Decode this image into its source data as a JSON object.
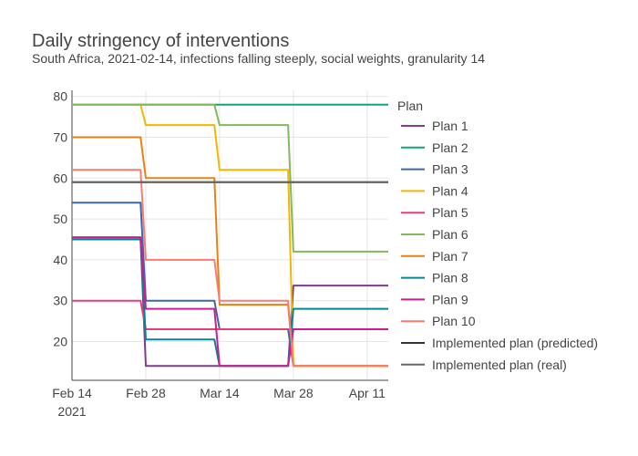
{
  "chart_data": {
    "type": "line",
    "title": "Daily stringency of interventions",
    "subtitle": "South Africa, 2021-02-14, infections falling steeply, social weights, granularity 14",
    "xlabel": "",
    "ylabel": "",
    "x_ticks": [
      {
        "date": "2021-02-14",
        "label": "Feb 14",
        "sublabel": "2021"
      },
      {
        "date": "2021-02-28",
        "label": "Feb 28",
        "sublabel": ""
      },
      {
        "date": "2021-03-14",
        "label": "Mar 14",
        "sublabel": ""
      },
      {
        "date": "2021-03-28",
        "label": "Mar 28",
        "sublabel": ""
      },
      {
        "date": "2021-04-11",
        "label": "Apr 11",
        "sublabel": ""
      }
    ],
    "xlim": [
      "2021-02-14",
      "2021-04-15"
    ],
    "y_ticks": [
      20,
      30,
      40,
      50,
      60,
      70,
      80
    ],
    "ylim": [
      10.5,
      81.5
    ],
    "grid": true,
    "legend": {
      "title": "Plan",
      "placement": "right"
    },
    "series": [
      {
        "name": "Plan 1",
        "color": "#7f3c8d",
        "points": [
          [
            "2021-02-14",
            45.5
          ],
          [
            "2021-02-27",
            45.5
          ],
          [
            "2021-02-28",
            14
          ],
          [
            "2021-03-13",
            14
          ],
          [
            "2021-03-14",
            14
          ],
          [
            "2021-03-27",
            14
          ],
          [
            "2021-03-28",
            33.7
          ],
          [
            "2021-04-15",
            33.7
          ]
        ]
      },
      {
        "name": "Plan 2",
        "color": "#11a579",
        "points": [
          [
            "2021-02-14",
            78
          ],
          [
            "2021-04-15",
            78
          ]
        ]
      },
      {
        "name": "Plan 3",
        "color": "#3969ac",
        "points": [
          [
            "2021-02-14",
            54
          ],
          [
            "2021-02-27",
            54
          ],
          [
            "2021-02-28",
            30
          ],
          [
            "2021-03-13",
            30
          ],
          [
            "2021-03-14",
            23
          ],
          [
            "2021-03-27",
            23
          ],
          [
            "2021-03-28",
            14
          ],
          [
            "2021-04-15",
            14
          ]
        ]
      },
      {
        "name": "Plan 4",
        "color": "#f2b701",
        "points": [
          [
            "2021-02-14",
            78
          ],
          [
            "2021-02-27",
            78
          ],
          [
            "2021-02-28",
            73
          ],
          [
            "2021-03-13",
            73
          ],
          [
            "2021-03-14",
            62
          ],
          [
            "2021-03-27",
            62
          ],
          [
            "2021-03-28",
            14
          ],
          [
            "2021-04-15",
            14
          ]
        ]
      },
      {
        "name": "Plan 5",
        "color": "#e73f74",
        "points": [
          [
            "2021-02-14",
            30
          ],
          [
            "2021-02-27",
            30
          ],
          [
            "2021-02-28",
            23
          ],
          [
            "2021-03-13",
            23
          ],
          [
            "2021-03-14",
            23
          ],
          [
            "2021-03-27",
            23
          ],
          [
            "2021-03-28",
            23
          ],
          [
            "2021-04-15",
            23
          ]
        ]
      },
      {
        "name": "Plan 6",
        "color": "#80ba5a",
        "points": [
          [
            "2021-02-14",
            78
          ],
          [
            "2021-02-27",
            78
          ],
          [
            "2021-02-28",
            78
          ],
          [
            "2021-03-13",
            78
          ],
          [
            "2021-03-14",
            73
          ],
          [
            "2021-03-27",
            73
          ],
          [
            "2021-03-28",
            42
          ],
          [
            "2021-04-15",
            42
          ]
        ]
      },
      {
        "name": "Plan 7",
        "color": "#e68310",
        "points": [
          [
            "2021-02-14",
            70
          ],
          [
            "2021-02-27",
            70
          ],
          [
            "2021-02-28",
            60
          ],
          [
            "2021-03-13",
            60
          ],
          [
            "2021-03-14",
            29
          ],
          [
            "2021-03-27",
            29
          ],
          [
            "2021-03-28",
            14
          ],
          [
            "2021-04-15",
            14
          ]
        ]
      },
      {
        "name": "Plan 8",
        "color": "#008695",
        "points": [
          [
            "2021-02-14",
            45
          ],
          [
            "2021-02-27",
            45
          ],
          [
            "2021-02-28",
            20.5
          ],
          [
            "2021-03-13",
            20.5
          ],
          [
            "2021-03-14",
            14
          ],
          [
            "2021-03-27",
            14
          ],
          [
            "2021-03-28",
            28
          ],
          [
            "2021-04-15",
            28
          ]
        ]
      },
      {
        "name": "Plan 9",
        "color": "#cf1c90",
        "points": [
          [
            "2021-02-14",
            45.5
          ],
          [
            "2021-02-27",
            45.5
          ],
          [
            "2021-02-28",
            28
          ],
          [
            "2021-03-13",
            28
          ],
          [
            "2021-03-14",
            14
          ],
          [
            "2021-03-27",
            14
          ],
          [
            "2021-03-28",
            23
          ],
          [
            "2021-04-15",
            23
          ]
        ]
      },
      {
        "name": "Plan 10",
        "color": "#f97b72",
        "points": [
          [
            "2021-02-14",
            62
          ],
          [
            "2021-02-27",
            62
          ],
          [
            "2021-02-28",
            40
          ],
          [
            "2021-03-13",
            40
          ],
          [
            "2021-03-14",
            30
          ],
          [
            "2021-03-27",
            30
          ],
          [
            "2021-03-28",
            14
          ],
          [
            "2021-04-15",
            14
          ]
        ]
      },
      {
        "name": "Implemented plan (predicted)",
        "color": "#333333",
        "points": [
          [
            "2021-02-14",
            59
          ],
          [
            "2021-04-15",
            59
          ]
        ]
      },
      {
        "name": "Implemented plan (real)",
        "color": "#666666",
        "points": [
          [
            "2021-02-14",
            59
          ],
          [
            "2021-04-15",
            59
          ]
        ]
      }
    ]
  }
}
